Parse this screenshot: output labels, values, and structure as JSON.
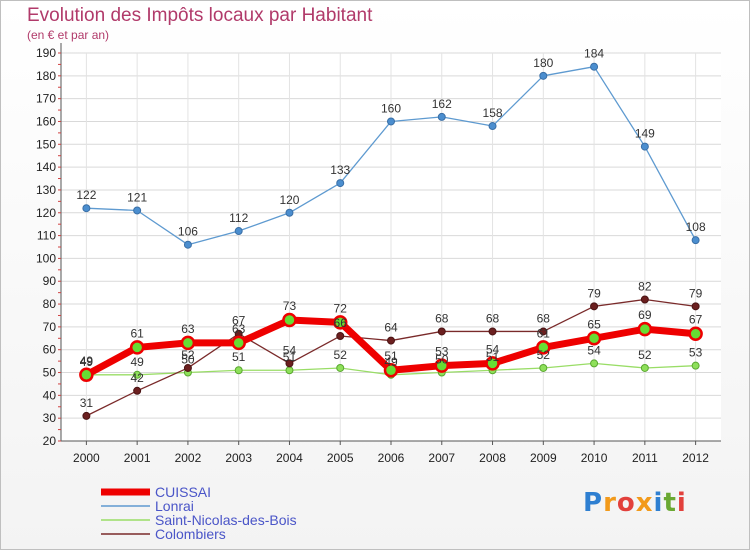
{
  "title": "Evolution des Impôts locaux par Habitant",
  "subtitle": "(en € et par an)",
  "logo": {
    "text": "Proxiti",
    "colors": [
      "#2e7fd1",
      "#f29a1b",
      "#e2403b",
      "#f29a1b",
      "#2e7fd1",
      "#6aa832",
      "#e2403b"
    ]
  },
  "chart_data": {
    "type": "line",
    "x": [
      "2000",
      "2001",
      "2002",
      "2003",
      "2004",
      "2005",
      "2006",
      "2007",
      "2008",
      "2009",
      "2010",
      "2011",
      "2012"
    ],
    "ylim": [
      20,
      190
    ],
    "yticks": [
      20,
      30,
      40,
      50,
      60,
      70,
      80,
      90,
      100,
      110,
      120,
      130,
      140,
      150,
      160,
      170,
      180,
      190
    ],
    "grid": true,
    "legend_position": "bottom-left",
    "series": [
      {
        "name": "CUISSAI",
        "color": "#ee0000",
        "values": [
          49,
          61,
          63,
          63,
          73,
          72,
          51,
          53,
          54,
          61,
          65,
          69,
          67
        ]
      },
      {
        "name": "Lonrai",
        "color": "#5e9ad0",
        "values": [
          122,
          121,
          106,
          112,
          120,
          133,
          160,
          162,
          158,
          180,
          184,
          149,
          108
        ]
      },
      {
        "name": "Saint-Nicolas-des-Bois",
        "color": "#99dd66",
        "values": [
          49,
          49,
          50,
          51,
          51,
          52,
          49,
          50,
          51,
          52,
          54,
          52,
          53
        ]
      },
      {
        "name": "Colombiers",
        "color": "#7a2a2a",
        "values": [
          31,
          42,
          52,
          67,
          54,
          66,
          64,
          68,
          68,
          68,
          79,
          82,
          79
        ]
      }
    ]
  }
}
